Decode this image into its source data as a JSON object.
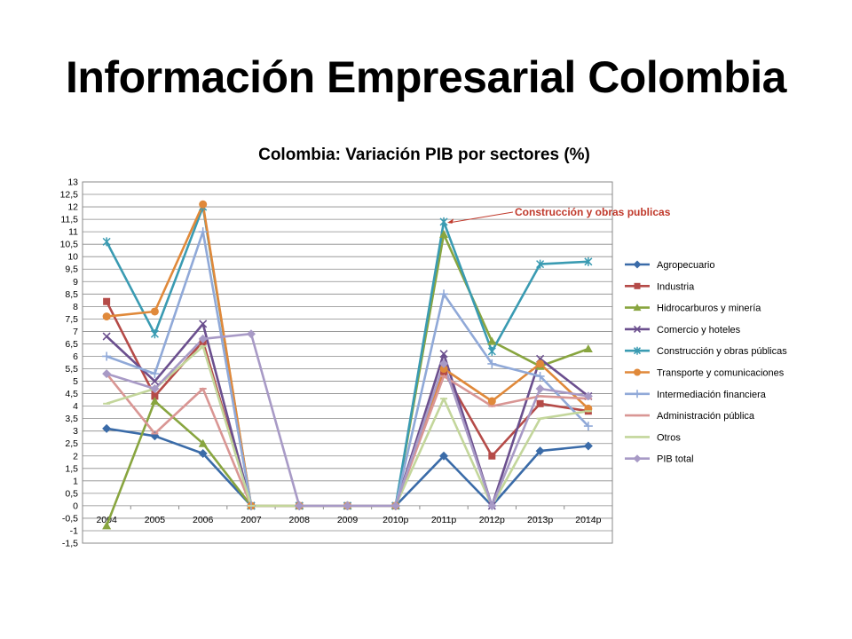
{
  "slide": {
    "title": "Información Empresarial Colombia"
  },
  "chart_data": {
    "type": "line",
    "title": "Colombia: Variación PIB por sectores (%)",
    "xlabel": "",
    "ylabel": "",
    "ylim": [
      -1.5,
      13
    ],
    "ystep": 0.5,
    "grid": true,
    "legend": "right",
    "categories": [
      "2004",
      "2005",
      "2006",
      "2007",
      "2008",
      "2009",
      "2010p",
      "2011p",
      "2012p",
      "2013p",
      "2014p"
    ],
    "series": [
      {
        "name": "Agropecuario",
        "color": "#3A6BA8",
        "marker": "diamond",
        "values": [
          3.1,
          2.8,
          2.1,
          0,
          0,
          0,
          0,
          2.0,
          0,
          2.2,
          2.4
        ]
      },
      {
        "name": "Industria",
        "color": "#B54B48",
        "marker": "square",
        "values": [
          8.2,
          4.4,
          6.6,
          0,
          0,
          0,
          0,
          5.4,
          2.0,
          4.1,
          3.8
        ]
      },
      {
        "name": "Hidrocarburos y minería",
        "color": "#88A53F",
        "marker": "triangle",
        "values": [
          -0.8,
          4.2,
          2.5,
          0,
          0,
          0,
          0,
          10.9,
          6.6,
          5.6,
          6.3
        ]
      },
      {
        "name": "Comercio y hoteles",
        "color": "#6B4F8E",
        "marker": "x",
        "values": [
          6.8,
          5.0,
          7.3,
          0,
          0,
          0,
          0,
          6.1,
          0,
          5.9,
          4.4
        ]
      },
      {
        "name": "Construcción y obras públicas",
        "color": "#3A9BB2",
        "marker": "star",
        "values": [
          10.6,
          6.9,
          12.0,
          0,
          0,
          0,
          0,
          11.4,
          6.2,
          9.7,
          9.8
        ]
      },
      {
        "name": "Transporte y comunicaciones",
        "color": "#E0893A",
        "marker": "circle",
        "values": [
          7.6,
          7.8,
          12.1,
          0,
          0,
          0,
          0,
          5.5,
          4.2,
          5.7,
          3.9
        ]
      },
      {
        "name": "Intermediación financiera",
        "color": "#90A9D8",
        "marker": "plus",
        "values": [
          6.0,
          5.3,
          11.0,
          0,
          0,
          0,
          0,
          8.5,
          5.7,
          5.2,
          3.2
        ]
      },
      {
        "name": "Administración pública",
        "color": "#D99694",
        "marker": "dash",
        "values": [
          5.3,
          2.9,
          4.7,
          0,
          0,
          0,
          0,
          5.2,
          4.0,
          4.4,
          4.3
        ]
      },
      {
        "name": "Otros",
        "color": "#C3D69B",
        "marker": "dash",
        "values": [
          4.1,
          4.7,
          6.4,
          0,
          0,
          0,
          0,
          4.3,
          0,
          3.5,
          3.8
        ]
      },
      {
        "name": "PIB total",
        "color": "#A89AC6",
        "marker": "diamond",
        "values": [
          5.3,
          4.7,
          6.7,
          6.9,
          0,
          0,
          0,
          5.7,
          0,
          4.7,
          4.4
        ]
      }
    ],
    "annotations": [
      {
        "text": "Construcción y obras publicas",
        "category": "2011p",
        "value": 11.4,
        "color": "#C0392B"
      }
    ]
  }
}
